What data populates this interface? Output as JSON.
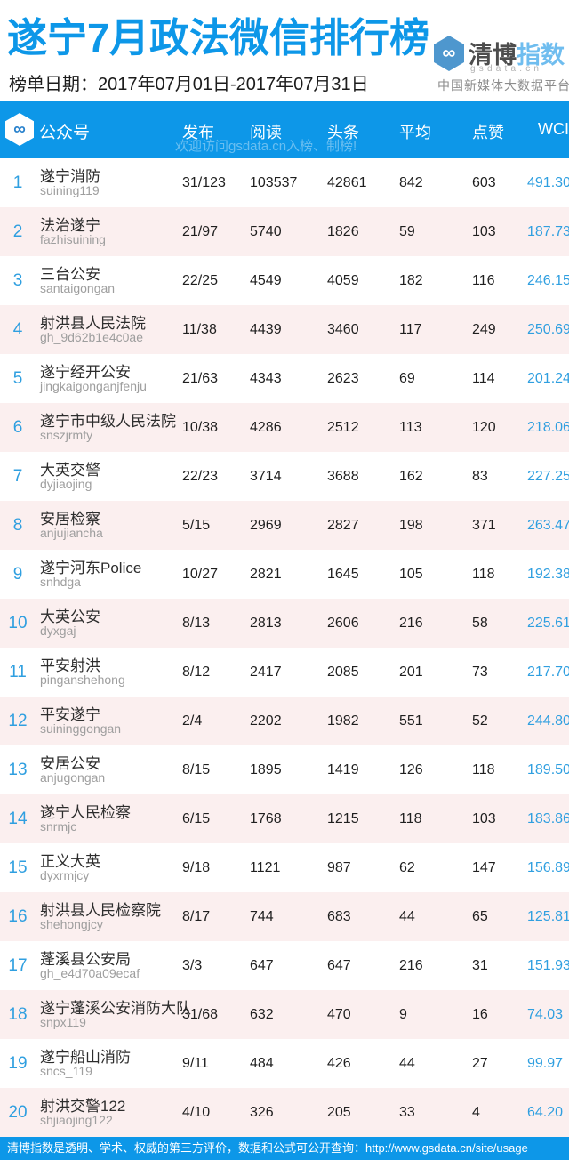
{
  "meta": {
    "title": "遂宁7月政法微信排行榜",
    "date_line": "榜单日期：2017年07月01日-2017年07月31日"
  },
  "brand": {
    "infinity_icon": "∞",
    "name_dark": "清博",
    "name_light": "指数",
    "domain": "gsdata.cn",
    "tagline": "中国新媒体大数据平台"
  },
  "table": {
    "headers": {
      "account": "公众号",
      "publish": "发布",
      "read": "阅读",
      "headline": "头条",
      "average": "平均",
      "likes": "点赞",
      "wci": "WCI"
    },
    "watermark": "欢迎访问gsdata.cn入榜、制榜!",
    "rows": [
      {
        "rank": "1",
        "name": "遂宁消防",
        "id": "suining119",
        "publish": "31/123",
        "read": "103537",
        "headline": "42861",
        "average": "842",
        "likes": "603",
        "wci": "491.30"
      },
      {
        "rank": "2",
        "name": "法治遂宁",
        "id": "fazhisuining",
        "publish": "21/97",
        "read": "5740",
        "headline": "1826",
        "average": "59",
        "likes": "103",
        "wci": "187.73"
      },
      {
        "rank": "3",
        "name": "三台公安",
        "id": "santaigongan",
        "publish": "22/25",
        "read": "4549",
        "headline": "4059",
        "average": "182",
        "likes": "116",
        "wci": "246.15"
      },
      {
        "rank": "4",
        "name": "射洪县人民法院",
        "id": "gh_9d62b1e4c0ae",
        "publish": "11/38",
        "read": "4439",
        "headline": "3460",
        "average": "117",
        "likes": "249",
        "wci": "250.69"
      },
      {
        "rank": "5",
        "name": "遂宁经开公安",
        "id": "jingkaigonganjfenju",
        "publish": "21/63",
        "read": "4343",
        "headline": "2623",
        "average": "69",
        "likes": "114",
        "wci": "201.24"
      },
      {
        "rank": "6",
        "name": "遂宁市中级人民法院",
        "id": "snszjrmfy",
        "publish": "10/38",
        "read": "4286",
        "headline": "2512",
        "average": "113",
        "likes": "120",
        "wci": "218.06"
      },
      {
        "rank": "7",
        "name": "大英交警",
        "id": "dyjiaojing",
        "publish": "22/23",
        "read": "3714",
        "headline": "3688",
        "average": "162",
        "likes": "83",
        "wci": "227.25"
      },
      {
        "rank": "8",
        "name": "安居检察",
        "id": "anjujiancha",
        "publish": "5/15",
        "read": "2969",
        "headline": "2827",
        "average": "198",
        "likes": "371",
        "wci": "263.47"
      },
      {
        "rank": "9",
        "name": "遂宁河东Police",
        "id": "snhdga",
        "publish": "10/27",
        "read": "2821",
        "headline": "1645",
        "average": "105",
        "likes": "118",
        "wci": "192.38"
      },
      {
        "rank": "10",
        "name": "大英公安",
        "id": "dyxgaj",
        "publish": "8/13",
        "read": "2813",
        "headline": "2606",
        "average": "216",
        "likes": "58",
        "wci": "225.61"
      },
      {
        "rank": "11",
        "name": "平安射洪",
        "id": "pinganshehong",
        "publish": "8/12",
        "read": "2417",
        "headline": "2085",
        "average": "201",
        "likes": "73",
        "wci": "217.70"
      },
      {
        "rank": "12",
        "name": "平安遂宁",
        "id": "suininggongan",
        "publish": "2/4",
        "read": "2202",
        "headline": "1982",
        "average": "551",
        "likes": "52",
        "wci": "244.80"
      },
      {
        "rank": "13",
        "name": "安居公安",
        "id": "anjugongan",
        "publish": "8/15",
        "read": "1895",
        "headline": "1419",
        "average": "126",
        "likes": "118",
        "wci": "189.50"
      },
      {
        "rank": "14",
        "name": "遂宁人民检察",
        "id": "snrmjc",
        "publish": "6/15",
        "read": "1768",
        "headline": "1215",
        "average": "118",
        "likes": "103",
        "wci": "183.86"
      },
      {
        "rank": "15",
        "name": "正义大英",
        "id": "dyxrmjcy",
        "publish": "9/18",
        "read": "1121",
        "headline": "987",
        "average": "62",
        "likes": "147",
        "wci": "156.89"
      },
      {
        "rank": "16",
        "name": "射洪县人民检察院",
        "id": "shehongjcy",
        "publish": "8/17",
        "read": "744",
        "headline": "683",
        "average": "44",
        "likes": "65",
        "wci": "125.81"
      },
      {
        "rank": "17",
        "name": "蓬溪县公安局",
        "id": "gh_e4d70a09ecaf",
        "publish": "3/3",
        "read": "647",
        "headline": "647",
        "average": "216",
        "likes": "31",
        "wci": "151.93"
      },
      {
        "rank": "18",
        "name": "遂宁蓬溪公安消防大队",
        "id": "snpx119",
        "publish": "31/68",
        "read": "632",
        "headline": "470",
        "average": "9",
        "likes": "16",
        "wci": "74.03"
      },
      {
        "rank": "19",
        "name": "遂宁船山消防",
        "id": "sncs_119",
        "publish": "9/11",
        "read": "484",
        "headline": "426",
        "average": "44",
        "likes": "27",
        "wci": "99.97"
      },
      {
        "rank": "20",
        "name": "射洪交警122",
        "id": "shjiaojing122",
        "publish": "4/10",
        "read": "326",
        "headline": "205",
        "average": "33",
        "likes": "4",
        "wci": "64.20"
      }
    ]
  },
  "footer": {
    "text": "清博指数是透明、学术、权威的第三方评价，数据和公式可公开查询：http://www.gsdata.cn/site/usage"
  },
  "colors": {
    "accent_blue": "#0D97E8",
    "rank_wci_blue": "#2F9FE0",
    "row_pink": "#FBEFEF",
    "brand_hex_blue": "#4E97CE"
  }
}
